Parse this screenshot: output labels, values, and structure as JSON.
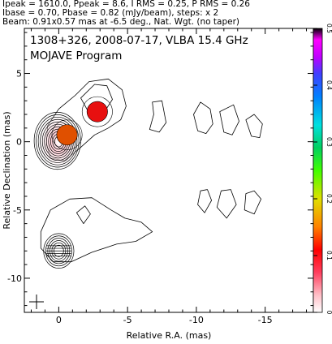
{
  "header": {
    "line1": "Ipeak = 1610.0, Ppeak = 8.6, I RMS = 0.25, P RMS = 0.26",
    "line2": "Ibase = 0.70, Pbase = 0.82 (mJy/beam), steps: x 2",
    "line3": "Beam: 0.91x0.57 mas at -6.5 deg., Nat. Wgt. (no taper)"
  },
  "chart_data": {
    "type": "contour",
    "title": "1308+326, 2008-07-17, VLBA 15.4 GHz",
    "subtitle": "MOJAVE Program",
    "xlabel": "Relative R.A. (mas)",
    "ylabel": "Relative Declination (mas)",
    "xlim": [
      2.5,
      -18.5
    ],
    "ylim": [
      -12.5,
      8.3
    ],
    "x_ticks": [
      0,
      -5,
      -10,
      -15
    ],
    "x_tick_labels": [
      "0",
      "-5",
      "-10",
      "-15"
    ],
    "y_ticks": [
      5,
      0,
      -5,
      -10
    ],
    "y_tick_labels": [
      "5",
      "0",
      "-5",
      "-10"
    ],
    "colorbar": {
      "ticks": [
        0,
        0.1,
        0.2,
        0.3,
        0.4,
        0.5
      ],
      "tick_labels": [
        "0",
        "0.1",
        "0.2",
        "0.3",
        "0.4",
        "0.5"
      ],
      "range": [
        0,
        0.5
      ]
    },
    "panels": [
      {
        "name": "total-intensity",
        "core": {
          "x": 0.0,
          "y": 0.0
        },
        "components": [
          {
            "x": -0.6,
            "y": 0.5,
            "color": "#e05000"
          },
          {
            "x": -2.8,
            "y": 2.2,
            "color": "#e81010"
          }
        ],
        "contours": [
          [
            [
              0.9,
              -0.2
            ],
            [
              0.8,
              1.2
            ],
            [
              0.0,
              2.4
            ],
            [
              -1.2,
              3.4
            ],
            [
              -2.2,
              4.4
            ],
            [
              -3.6,
              4.6
            ],
            [
              -4.6,
              3.8
            ],
            [
              -4.9,
              2.6
            ],
            [
              -4.5,
              1.6
            ],
            [
              -3.6,
              1.0
            ],
            [
              -2.6,
              0.5
            ],
            [
              -1.5,
              -0.5
            ],
            [
              -0.4,
              -1.4
            ],
            [
              0.6,
              -1.2
            ]
          ],
          [
            [
              -1.6,
              3.2
            ],
            [
              -2.6,
              4.2
            ],
            [
              -3.5,
              4.1
            ],
            [
              -3.9,
              3.1
            ],
            [
              -3.2,
              2.0
            ],
            [
              -2.2,
              2.1
            ]
          ],
          [
            [
              -6.6,
              0.9
            ],
            [
              -6.9,
              2.0
            ],
            [
              -6.8,
              2.9
            ],
            [
              -7.5,
              3.0
            ],
            [
              -7.8,
              1.4
            ],
            [
              -7.3,
              0.7
            ]
          ],
          [
            [
              -10.1,
              0.8
            ],
            [
              -9.8,
              2.0
            ],
            [
              -10.3,
              2.9
            ],
            [
              -11.0,
              2.4
            ],
            [
              -11.2,
              1.3
            ],
            [
              -10.7,
              0.6
            ]
          ],
          [
            [
              -12.0,
              0.7
            ],
            [
              -11.7,
              2.2
            ],
            [
              -12.7,
              2.7
            ],
            [
              -13.1,
              1.5
            ],
            [
              -12.6,
              0.5
            ]
          ],
          [
            [
              -14.0,
              0.4
            ],
            [
              -13.6,
              1.6
            ],
            [
              -14.2,
              2.0
            ],
            [
              -14.8,
              1.3
            ],
            [
              -14.6,
              0.3
            ]
          ]
        ]
      },
      {
        "name": "polarized-intensity",
        "core": {
          "x": 0.0,
          "y": -8.0
        },
        "contours": [
          [
            [
              1.3,
              -6.6
            ],
            [
              0.6,
              -5.0
            ],
            [
              -0.8,
              -4.2
            ],
            [
              -2.4,
              -4.1
            ],
            [
              -3.8,
              -5.0
            ],
            [
              -4.8,
              -5.6
            ],
            [
              -6.0,
              -5.9
            ],
            [
              -6.8,
              -6.6
            ],
            [
              -5.6,
              -7.3
            ],
            [
              -4.2,
              -7.5
            ],
            [
              -2.4,
              -8.1
            ],
            [
              -0.9,
              -8.8
            ],
            [
              0.4,
              -8.8
            ],
            [
              1.3,
              -7.8
            ]
          ],
          [
            [
              -1.3,
              -5.2
            ],
            [
              -1.8,
              -6.0
            ],
            [
              -2.3,
              -5.3
            ],
            [
              -1.9,
              -4.7
            ]
          ],
          [
            [
              -10.3,
              -3.6
            ],
            [
              -10.1,
              -4.6
            ],
            [
              -10.6,
              -5.2
            ],
            [
              -11.1,
              -4.3
            ],
            [
              -10.8,
              -3.5
            ]
          ],
          [
            [
              -11.8,
              -3.6
            ],
            [
              -11.5,
              -4.8
            ],
            [
              -12.2,
              -5.6
            ],
            [
              -12.9,
              -4.6
            ],
            [
              -12.5,
              -3.5
            ]
          ],
          [
            [
              -13.6,
              -3.8
            ],
            [
              -13.5,
              -5.0
            ],
            [
              -14.2,
              -5.3
            ],
            [
              -14.7,
              -4.2
            ],
            [
              -14.2,
              -3.6
            ]
          ]
        ]
      }
    ]
  }
}
